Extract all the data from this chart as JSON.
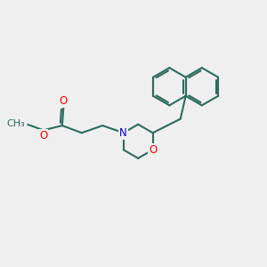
{
  "bg_color": "#efefef",
  "bond_color": "#2d6b5e",
  "bond_width": 1.5,
  "atom_colors": {
    "O": "#ff0000",
    "N": "#0000cc",
    "C": "#2d6b5e"
  },
  "font_size": 8.5,
  "naph_r": 0.72,
  "morph_r": 0.62
}
